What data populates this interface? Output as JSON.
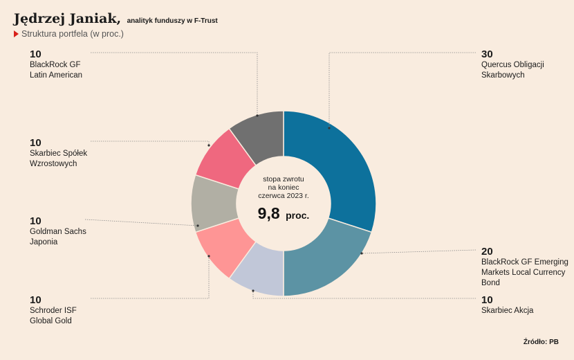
{
  "header": {
    "name": "Jędrzej Janiak,",
    "role": "analityk funduszy w F-Trust",
    "subtitle": "Struktura portfela (w proc.)"
  },
  "center": {
    "line1": "stopa zwrotu",
    "line2": "na koniec",
    "line3": "czerwca 2023 r.",
    "value": "9,8",
    "unit": "proc."
  },
  "source": "Źródło: PB",
  "chart_data": {
    "type": "pie",
    "title": "Struktura portfela (w proc.)",
    "slices": [
      {
        "label": "Quercus Obligacji\nSkarbowych",
        "value": 30,
        "display": "30",
        "color": "#0d719c"
      },
      {
        "label": "BlackRock GF Emerging\nMarkets Local Currency\nBond",
        "value": 20,
        "display": "20",
        "color": "#5c93a4"
      },
      {
        "label": "Skarbiec Akcja",
        "value": 10,
        "display": "10",
        "color": "#c1c7d8"
      },
      {
        "label": "Schroder ISF\nGlobal Gold",
        "value": 10,
        "display": "10",
        "color": "#fe9595"
      },
      {
        "label": "Goldman Sachs\nJaponia",
        "value": 10,
        "display": "10",
        "color": "#b1afa4"
      },
      {
        "label": "Skarbiec Spółek\nWzrostowych",
        "value": 10,
        "display": "10",
        "color": "#ef687f"
      },
      {
        "label": "BlackRock GF\nLatin American",
        "value": 10,
        "display": "10",
        "color": "#707070"
      }
    ]
  }
}
